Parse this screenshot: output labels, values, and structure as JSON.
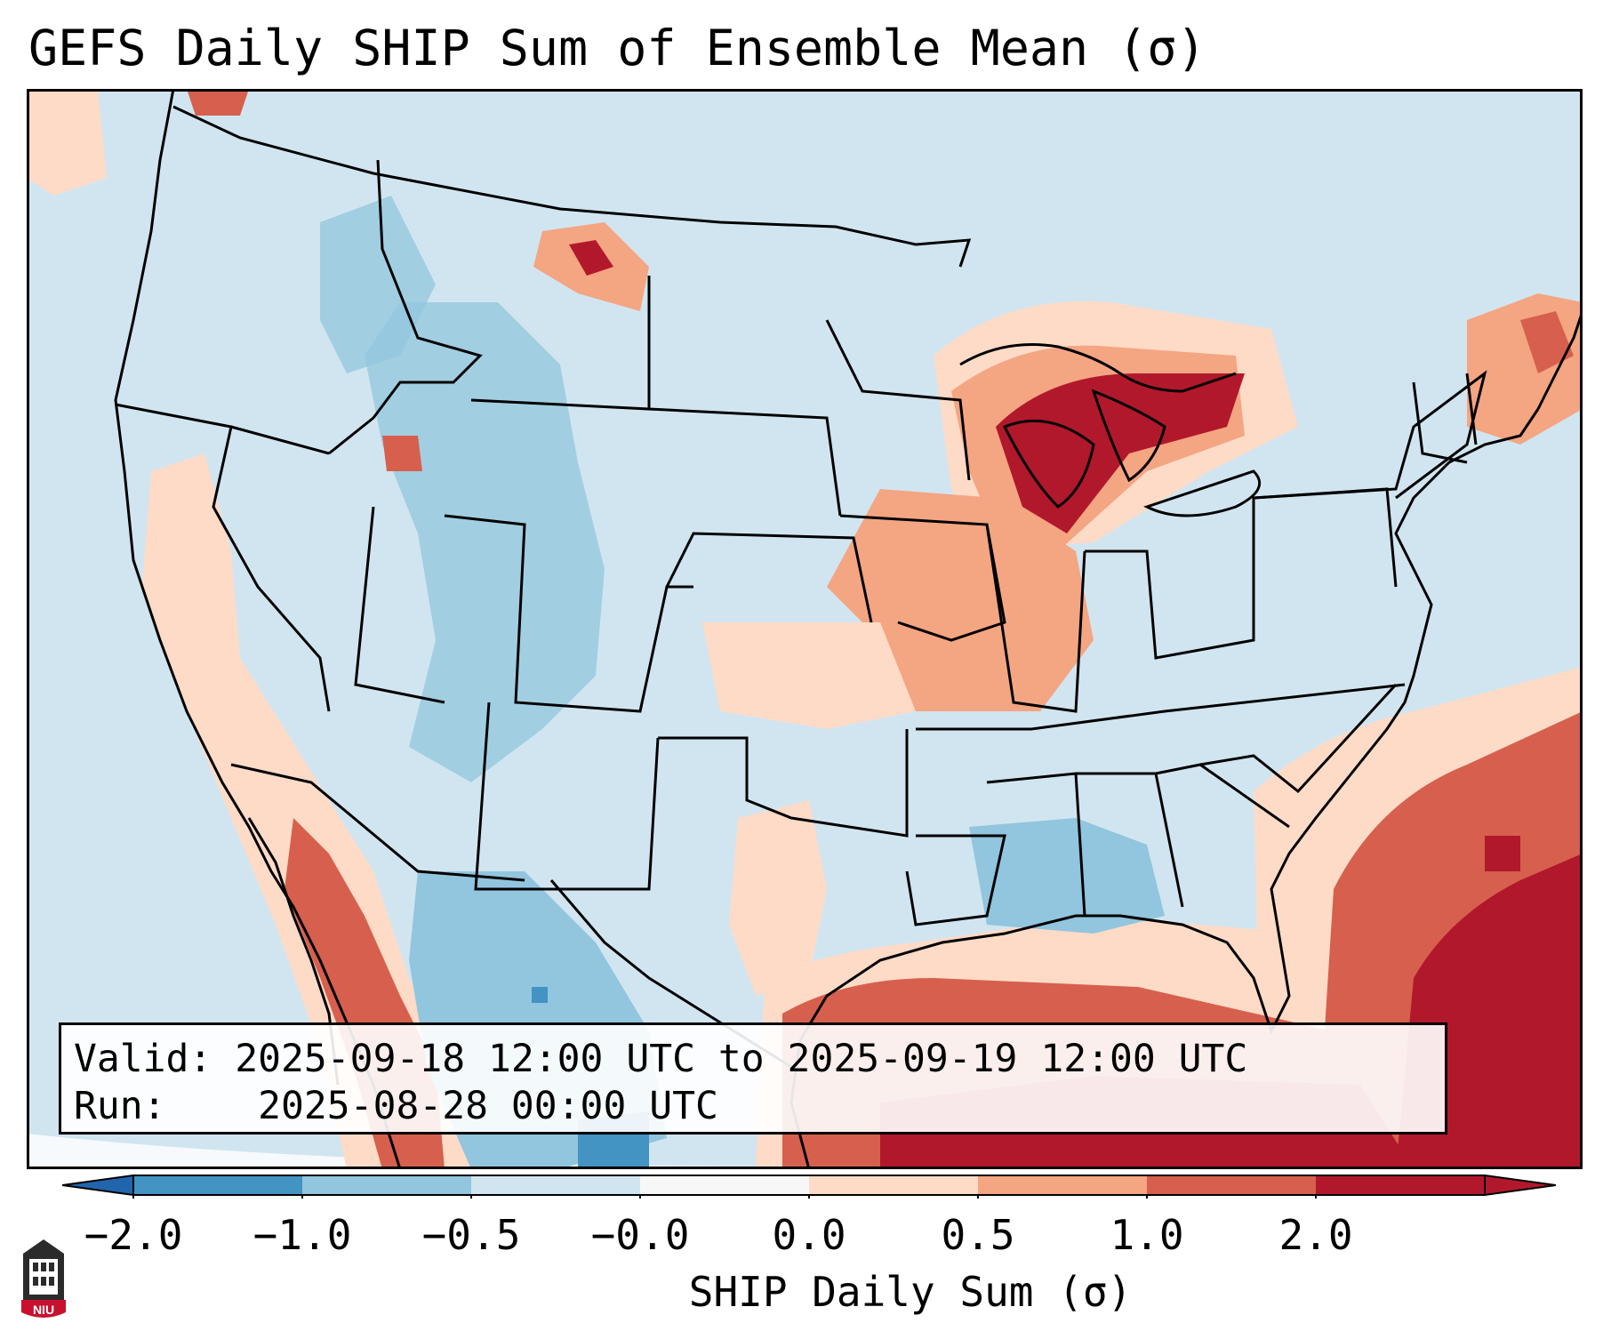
{
  "title": "GEFS Daily SHIP Sum of Ensemble Mean (σ)",
  "info": {
    "valid_label": "Valid:",
    "valid_value": "2025-09-18 12:00 UTC to 2025-09-19 12:00 UTC",
    "run_label": "Run:",
    "run_value": "2025-08-28 00:00 UTC"
  },
  "colorbar": {
    "label": "SHIP Daily Sum (σ)",
    "tick_labels": [
      "−2.0",
      "−1.0",
      "−0.5",
      "−0.0",
      "0.0",
      "0.5",
      "1.0",
      "2.0"
    ],
    "colors": [
      "#4393c3",
      "#92c5de",
      "#d1e5f0",
      "#f7f7f7",
      "#fddbc7",
      "#f4a582",
      "#d6604d",
      "#b2182b"
    ],
    "under_color": "#2166ac",
    "over_color": "#b2182b"
  },
  "map": {
    "region": "CONUS",
    "background_color": "#d1e5f0"
  },
  "logo": {
    "text": "NIU"
  }
}
